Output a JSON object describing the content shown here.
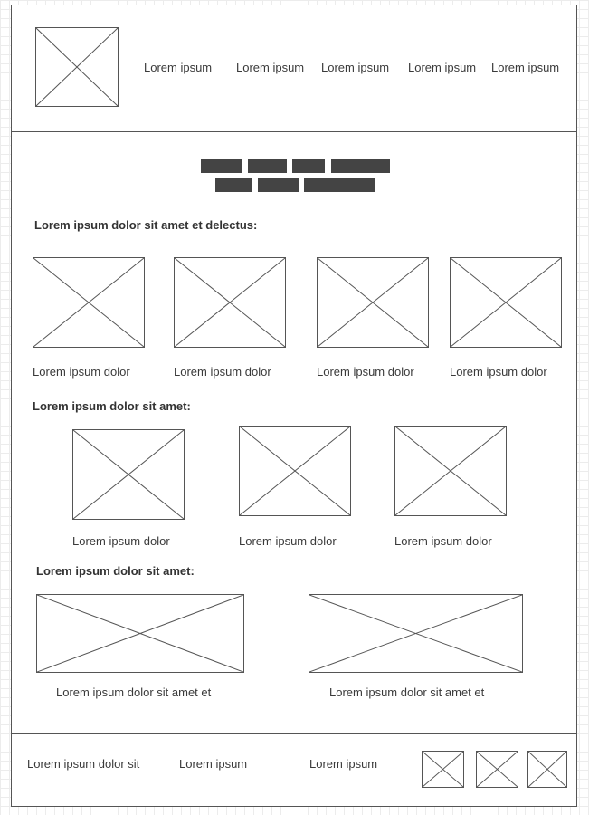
{
  "header": {
    "logo_icon": "image-placeholder-icon",
    "nav": [
      "Lorem ipsum",
      "Lorem ipsum",
      "Lorem ipsum",
      "Lorem ipsum",
      "Lorem ipsum"
    ]
  },
  "sections": [
    {
      "heading": "Lorem ipsum dolor sit amet et delectus:",
      "items": [
        "Lorem ipsum dolor",
        "Lorem ipsum dolor",
        "Lorem ipsum dolor",
        "Lorem ipsum dolor"
      ]
    },
    {
      "heading": "Lorem ipsum dolor sit amet:",
      "items": [
        "Lorem ipsum dolor",
        "Lorem ipsum dolor",
        "Lorem ipsum dolor"
      ]
    },
    {
      "heading": "Lorem ipsum dolor sit amet:",
      "items": [
        "Lorem ipsum dolor sit amet et",
        "Lorem ipsum dolor sit amet et"
      ]
    }
  ],
  "footer": {
    "links": [
      "Lorem ipsum dolor sit",
      "Lorem ipsum",
      "Lorem ipsum"
    ]
  },
  "colors": {
    "frame_border": "#555555",
    "title_blocks": "#444444",
    "grid": "#ececec"
  }
}
